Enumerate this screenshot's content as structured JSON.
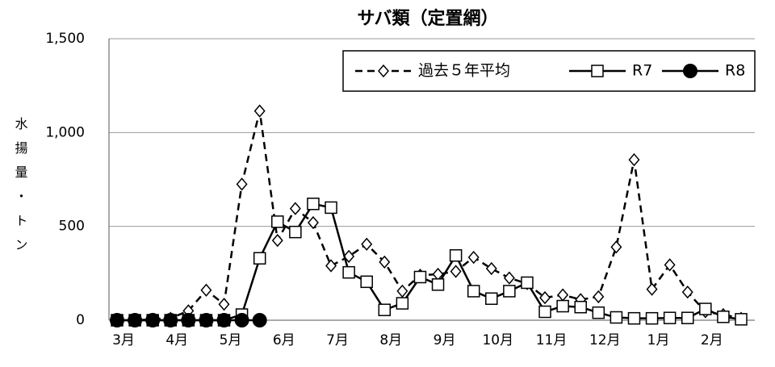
{
  "chart_data": {
    "type": "line",
    "title": "サバ類（定置網）",
    "y_label": "水揚量・トン",
    "categories": [
      "3月",
      null,
      null,
      "4月",
      null,
      null,
      "5月",
      null,
      null,
      "6月",
      null,
      null,
      "7月",
      null,
      null,
      "8月",
      null,
      null,
      "9月",
      null,
      null,
      "10月",
      null,
      null,
      "11月",
      null,
      null,
      "12月",
      null,
      null,
      "1月",
      null,
      null,
      "2月",
      null,
      null
    ],
    "series": [
      {
        "name": "過去５年平均",
        "color": "#000000",
        "line_style": "dashed",
        "marker": "diamond",
        "values": [
          0,
          0,
          5,
          10,
          50,
          160,
          85,
          725,
          1115,
          425,
          595,
          520,
          290,
          340,
          405,
          310,
          155,
          240,
          245,
          260,
          335,
          275,
          225,
          195,
          120,
          135,
          110,
          125,
          390,
          855,
          165,
          295,
          150,
          45,
          30,
          10
        ]
      },
      {
        "name": "R7",
        "color": "#000000",
        "line_style": "solid",
        "marker": "square",
        "values": [
          0,
          0,
          0,
          0,
          0,
          0,
          0,
          30,
          330,
          525,
          470,
          620,
          600,
          255,
          205,
          55,
          90,
          230,
          190,
          345,
          155,
          115,
          155,
          200,
          45,
          75,
          70,
          40,
          15,
          10,
          10,
          12,
          12,
          60,
          18,
          5
        ]
      },
      {
        "name": "R8",
        "color": "#000000",
        "line_style": "solid",
        "marker": "circle",
        "values": [
          0,
          0,
          0,
          0,
          0,
          0,
          0,
          0,
          0,
          null,
          null,
          null,
          null,
          null,
          null,
          null,
          null,
          null,
          null,
          null,
          null,
          null,
          null,
          null,
          null,
          null,
          null,
          null,
          null,
          null,
          null,
          null,
          null,
          null,
          null,
          null
        ]
      }
    ],
    "ylim": [
      0,
      1500
    ],
    "yticks": [
      0,
      500,
      {
        "value": 1000,
        "label": "1,000"
      },
      {
        "value": 1500,
        "label": "1,500"
      }
    ],
    "grid": true,
    "legend": "top-right"
  }
}
